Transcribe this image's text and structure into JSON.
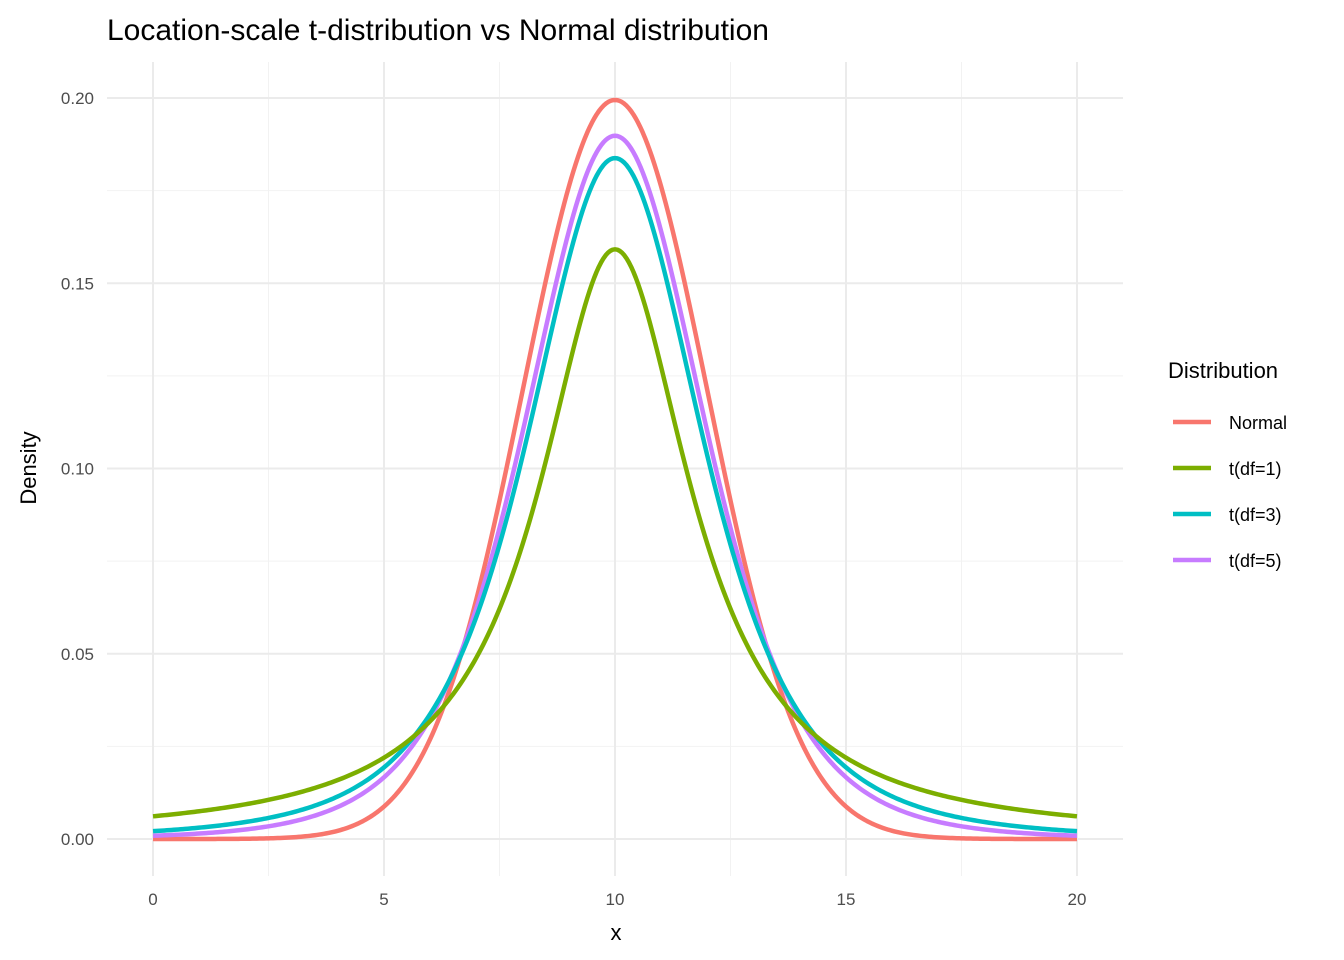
{
  "chart_data": {
    "type": "line",
    "title": "Location-scale t-distribution vs Normal distribution",
    "xlabel": "x",
    "ylabel": "Density",
    "xlim": [
      0,
      20
    ],
    "ylim": [
      0,
      0.2
    ],
    "xticks": [
      0,
      5,
      10,
      15,
      20
    ],
    "xtick_labels": [
      "0",
      "5",
      "10",
      "15",
      "20"
    ],
    "yticks": [
      0,
      0.05,
      0.1,
      0.15,
      0.2
    ],
    "ytick_labels": [
      "0.00",
      "0.05",
      "0.10",
      "0.15",
      "0.20"
    ],
    "grid": true,
    "legend": {
      "title": "Distribution",
      "placement": "right"
    },
    "location": 10,
    "scale": 2,
    "x": [
      0,
      1,
      2,
      3,
      4,
      5,
      6,
      7,
      8,
      9,
      10,
      11,
      12,
      13,
      14,
      15,
      16,
      17,
      18,
      19,
      20
    ],
    "series": [
      {
        "name": "Normal",
        "color": "#F8766D",
        "dist": "normal",
        "values": [
          7e-07,
          8e-06,
          6.7e-05,
          0.00044,
          0.00222,
          0.00876,
          0.027,
          0.06476,
          0.12099,
          0.17603,
          0.19947,
          0.17603,
          0.12099,
          0.06476,
          0.027,
          0.00876,
          0.00222,
          0.00044,
          6.7e-05,
          8e-06,
          7e-07
        ]
      },
      {
        "name": "t(df=1)",
        "color": "#7CAE00",
        "dist": "t",
        "df": 1,
        "values": [
          0.00612,
          0.00749,
          0.00936,
          0.01201,
          0.01592,
          0.02195,
          0.03183,
          0.04897,
          0.07958,
          0.12732,
          0.15915,
          0.12732,
          0.07958,
          0.04897,
          0.03183,
          0.02195,
          0.01592,
          0.01201,
          0.00936,
          0.00749,
          0.00612
        ]
      },
      {
        "name": "t(df=3)",
        "color": "#00BFC4",
        "dist": "t",
        "df": 3,
        "values": [
          0.00211,
          0.00306,
          0.00458,
          0.00711,
          0.01149,
          0.01933,
          0.03376,
          0.06001,
          0.10338,
          0.1566,
          0.18378,
          0.1566,
          0.10338,
          0.06001,
          0.03376,
          0.01933,
          0.01149,
          0.00711,
          0.00458,
          0.00306,
          0.00211
        ]
      },
      {
        "name": "t(df=5)",
        "color": "#C77CFF",
        "dist": "t",
        "df": 5,
        "values": [
          0.00088,
          0.00147,
          0.00256,
          0.00462,
          0.00865,
          0.01666,
          0.03254,
          0.06226,
          0.10984,
          0.16396,
          0.1898,
          0.16396,
          0.10984,
          0.06226,
          0.03254,
          0.01666,
          0.00865,
          0.00462,
          0.00256,
          0.00147,
          0.00088
        ]
      }
    ]
  }
}
